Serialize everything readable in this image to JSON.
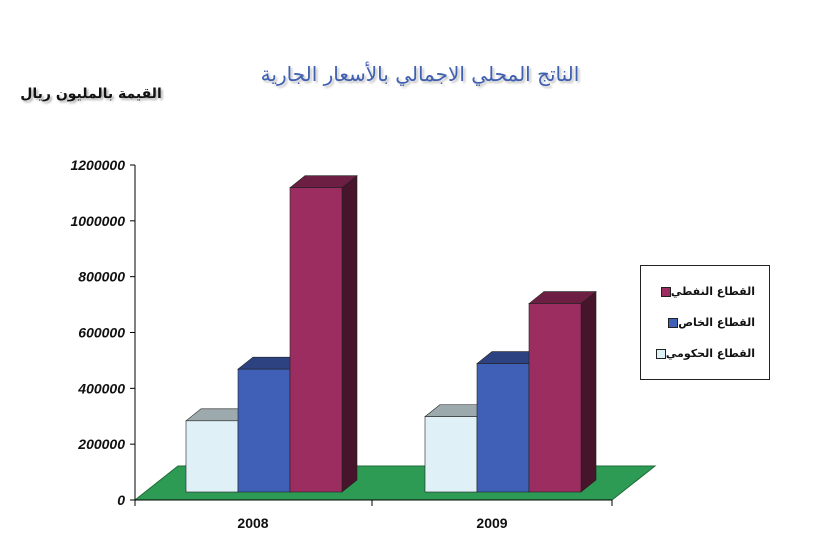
{
  "chart_data": {
    "type": "bar",
    "title": "الناتج المحلي الاجمالي بالأسعار الجارية",
    "ylabel": "القيمة بالمليون ريال",
    "categories": [
      "2008",
      "2009"
    ],
    "ylim": [
      0,
      1200000
    ],
    "yticks": [
      "0",
      "200000",
      "400000",
      "600000",
      "800000",
      "1000000",
      "1200000"
    ],
    "series": [
      {
        "name": "القطاع الحكومي",
        "color": "#dff1f7",
        "values": [
          255000,
          270000
        ]
      },
      {
        "name": "القطاع الخاص",
        "color": "#4060b8",
        "values": [
          440000,
          460000
        ]
      },
      {
        "name": "القطاع النفطي",
        "color": "#9b2d60",
        "values": [
          1090000,
          675000
        ]
      }
    ],
    "legend_position": "right",
    "floor_color": "#2e9b55"
  }
}
